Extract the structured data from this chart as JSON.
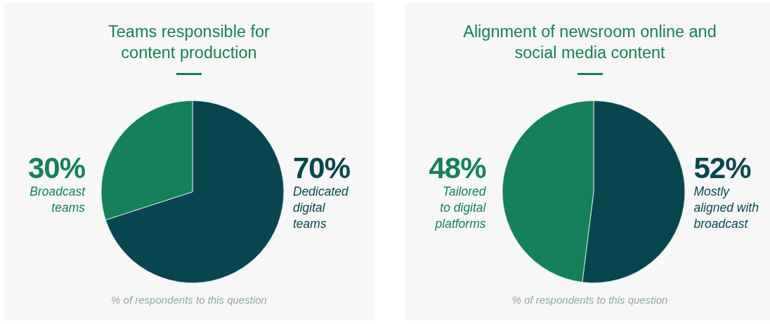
{
  "chart_data": [
    {
      "type": "pie",
      "title": "Teams responsible for content production",
      "categories": [
        "Dedicated digital teams",
        "Broadcast teams"
      ],
      "values": [
        70,
        30
      ],
      "colors": [
        "#08464f",
        "#15805a"
      ],
      "value_labels": [
        "70%",
        "30%"
      ],
      "annotations": [
        "% of respondents to this question"
      ]
    },
    {
      "type": "pie",
      "title": "Alignment of newsroom online and social media content",
      "categories": [
        "Mostly aligned with broadcast",
        "Tailored to digital platforms"
      ],
      "values": [
        52,
        48
      ],
      "colors": [
        "#08464f",
        "#15805a"
      ],
      "value_labels": [
        "52%",
        "48%"
      ],
      "annotations": [
        "% of respondents to this question"
      ]
    }
  ]
}
